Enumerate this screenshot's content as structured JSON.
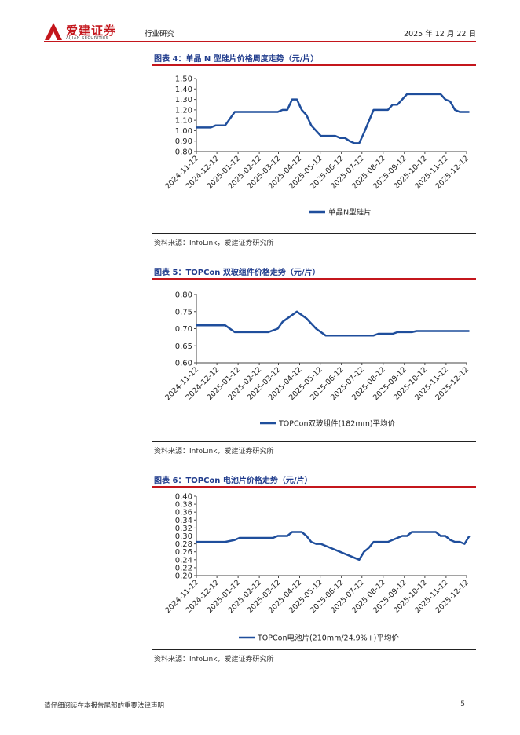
{
  "header": {
    "logo_cn": "爱建证券",
    "logo_en": "AIJIAN SECURITIES",
    "section": "行业研究",
    "date": "2025 年 12 月 22 日"
  },
  "figures": [
    {
      "title": "图表 4：单晶 N 型硅片价格周度走势（元/片）",
      "source": "资料来源：InfoLink，爱建证券研究所"
    },
    {
      "title": "图表 5：TOPCon 双玻组件价格走势（元/片）",
      "source": "资料来源：InfoLink，爱建证券研究所"
    },
    {
      "title": "图表 6：TOPCon 电池片价格走势（元/片）",
      "source": "资料来源：InfoLink，爱建证券研究所"
    }
  ],
  "chart_data": [
    {
      "type": "line",
      "title": "",
      "xlabel": "",
      "ylabel": "",
      "x_ticks": [
        "2024-11-12",
        "2024-12-12",
        "2025-01-12",
        "2025-02-12",
        "2025-03-12",
        "2025-04-12",
        "2025-05-12",
        "2025-06-12",
        "2025-07-12",
        "2025-08-12",
        "2025-09-12",
        "2025-10-12",
        "2025-11-12",
        "2025-12-12"
      ],
      "y_ticks": [
        "1.50",
        "1.40",
        "1.30",
        "1.20",
        "1.10",
        "1.00",
        "0.90",
        "0.80"
      ],
      "ylim": [
        0.8,
        1.5
      ],
      "xlim": [
        "2024-11-12",
        "2025-12-12"
      ],
      "legend_position": "bottom",
      "series": [
        {
          "name": "单晶N型硅片",
          "color": "#1f4e9c",
          "points": [
            [
              "2024-11-12",
              1.03
            ],
            [
              "2024-11-26",
              1.03
            ],
            [
              "2024-12-03",
              1.03
            ],
            [
              "2024-12-10",
              1.05
            ],
            [
              "2024-12-24",
              1.05
            ],
            [
              "2025-01-07",
              1.18
            ],
            [
              "2025-01-21",
              1.18
            ],
            [
              "2025-02-18",
              1.18
            ],
            [
              "2025-03-11",
              1.18
            ],
            [
              "2025-03-18",
              1.2
            ],
            [
              "2025-03-25",
              1.2
            ],
            [
              "2025-04-01",
              1.3
            ],
            [
              "2025-04-08",
              1.3
            ],
            [
              "2025-04-15",
              1.2
            ],
            [
              "2025-04-22",
              1.15
            ],
            [
              "2025-04-29",
              1.05
            ],
            [
              "2025-05-13",
              0.95
            ],
            [
              "2025-05-27",
              0.95
            ],
            [
              "2025-06-03",
              0.95
            ],
            [
              "2025-06-10",
              0.93
            ],
            [
              "2025-06-17",
              0.93
            ],
            [
              "2025-06-24",
              0.9
            ],
            [
              "2025-07-01",
              0.88
            ],
            [
              "2025-07-08",
              0.88
            ],
            [
              "2025-07-15",
              0.98
            ],
            [
              "2025-07-29",
              1.2
            ],
            [
              "2025-08-05",
              1.2
            ],
            [
              "2025-08-19",
              1.2
            ],
            [
              "2025-08-26",
              1.25
            ],
            [
              "2025-09-02",
              1.25
            ],
            [
              "2025-09-16",
              1.35
            ],
            [
              "2025-09-30",
              1.35
            ],
            [
              "2025-10-28",
              1.35
            ],
            [
              "2025-11-04",
              1.35
            ],
            [
              "2025-11-11",
              1.3
            ],
            [
              "2025-11-18",
              1.28
            ],
            [
              "2025-11-25",
              1.2
            ],
            [
              "2025-12-02",
              1.18
            ],
            [
              "2025-12-16",
              1.18
            ]
          ]
        }
      ]
    },
    {
      "type": "line",
      "title": "",
      "xlabel": "",
      "ylabel": "",
      "x_ticks": [
        "2024-11-12",
        "2024-12-12",
        "2025-01-12",
        "2025-02-12",
        "2025-03-12",
        "2025-04-12",
        "2025-05-12",
        "2025-06-12",
        "2025-07-12",
        "2025-08-12",
        "2025-09-12",
        "2025-10-12",
        "2025-11-12",
        "2025-12-12"
      ],
      "y_ticks": [
        "0.80",
        "0.75",
        "0.70",
        "0.65",
        "0.60"
      ],
      "ylim": [
        0.6,
        0.8
      ],
      "xlim": [
        "2024-11-12",
        "2025-12-12"
      ],
      "legend_position": "bottom",
      "series": [
        {
          "name": "TOPCon双玻组件(182mm)平均价",
          "color": "#1f4e9c",
          "points": [
            [
              "2024-11-12",
              0.71
            ],
            [
              "2024-12-24",
              0.71
            ],
            [
              "2025-01-07",
              0.69
            ],
            [
              "2025-01-21",
              0.69
            ],
            [
              "2025-02-25",
              0.69
            ],
            [
              "2025-03-11",
              0.7
            ],
            [
              "2025-03-18",
              0.72
            ],
            [
              "2025-04-08",
              0.75
            ],
            [
              "2025-04-22",
              0.73
            ],
            [
              "2025-05-06",
              0.7
            ],
            [
              "2025-05-20",
              0.68
            ],
            [
              "2025-06-17",
              0.68
            ],
            [
              "2025-07-15",
              0.68
            ],
            [
              "2025-07-29",
              0.68
            ],
            [
              "2025-08-05",
              0.685
            ],
            [
              "2025-08-26",
              0.685
            ],
            [
              "2025-09-02",
              0.69
            ],
            [
              "2025-09-23",
              0.69
            ],
            [
              "2025-09-30",
              0.693
            ],
            [
              "2025-12-16",
              0.693
            ]
          ]
        }
      ]
    },
    {
      "type": "line",
      "title": "",
      "xlabel": "",
      "ylabel": "",
      "x_ticks": [
        "2024-11-12",
        "2024-12-12",
        "2025-01-12",
        "2025-02-12",
        "2025-03-12",
        "2025-04-12",
        "2025-05-12",
        "2025-06-12",
        "2025-07-12",
        "2025-08-12",
        "2025-09-12",
        "2025-10-12",
        "2025-11-12",
        "2025-12-12"
      ],
      "y_ticks": [
        "0.40",
        "0.38",
        "0.36",
        "0.34",
        "0.32",
        "0.30",
        "0.28",
        "0.26",
        "0.24",
        "0.22",
        "0.20"
      ],
      "ylim": [
        0.2,
        0.4
      ],
      "xlim": [
        "2024-11-12",
        "2025-12-12"
      ],
      "legend_position": "bottom",
      "series": [
        {
          "name": "TOPCon电池片(210mm/24.9%+)平均价",
          "color": "#1f4e9c",
          "points": [
            [
              "2024-11-12",
              0.285
            ],
            [
              "2024-12-24",
              0.285
            ],
            [
              "2025-01-07",
              0.29
            ],
            [
              "2025-01-14",
              0.295
            ],
            [
              "2025-02-25",
              0.295
            ],
            [
              "2025-03-04",
              0.295
            ],
            [
              "2025-03-11",
              0.3
            ],
            [
              "2025-03-25",
              0.3
            ],
            [
              "2025-04-01",
              0.31
            ],
            [
              "2025-04-15",
              0.31
            ],
            [
              "2025-04-22",
              0.3
            ],
            [
              "2025-04-29",
              0.285
            ],
            [
              "2025-05-06",
              0.28
            ],
            [
              "2025-05-13",
              0.28
            ],
            [
              "2025-07-08",
              0.24
            ],
            [
              "2025-07-15",
              0.26
            ],
            [
              "2025-07-22",
              0.27
            ],
            [
              "2025-07-29",
              0.285
            ],
            [
              "2025-08-19",
              0.285
            ],
            [
              "2025-09-02",
              0.295
            ],
            [
              "2025-09-09",
              0.3
            ],
            [
              "2025-09-16",
              0.3
            ],
            [
              "2025-09-23",
              0.31
            ],
            [
              "2025-10-28",
              0.31
            ],
            [
              "2025-11-04",
              0.3
            ],
            [
              "2025-11-11",
              0.3
            ],
            [
              "2025-11-18",
              0.29
            ],
            [
              "2025-11-25",
              0.285
            ],
            [
              "2025-12-02",
              0.285
            ],
            [
              "2025-12-09",
              0.28
            ],
            [
              "2025-12-16",
              0.3
            ]
          ]
        }
      ]
    }
  ],
  "footer": {
    "disclaimer": "请仔细阅读在本报告尾部的重要法律声明",
    "page": "5"
  }
}
